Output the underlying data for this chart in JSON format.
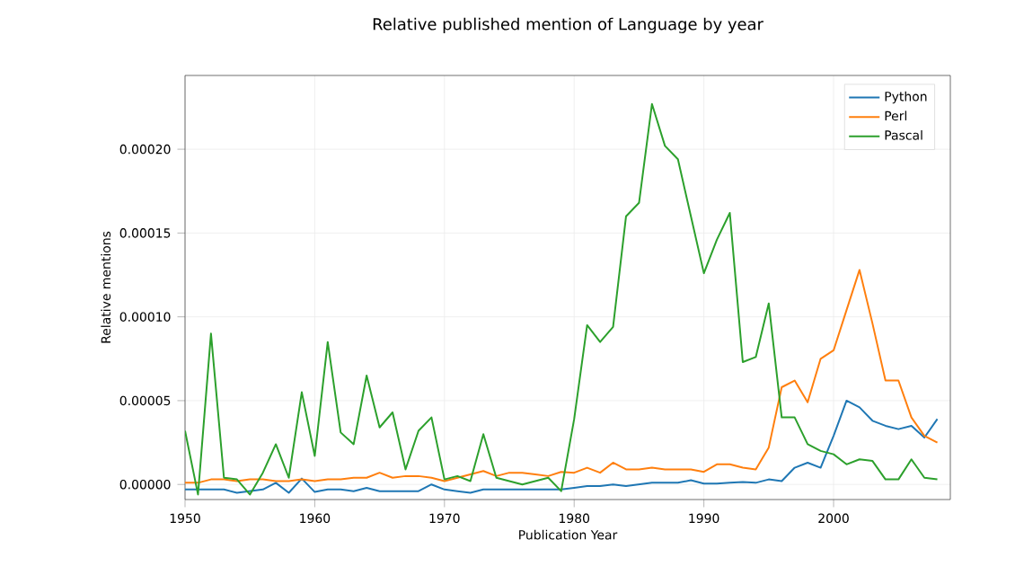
{
  "chart_data": {
    "type": "line",
    "title": "Relative published mention of Language by year",
    "xlabel": "Publication Year",
    "ylabel": "Relative mentions",
    "x": [
      1950,
      1951,
      1952,
      1953,
      1954,
      1955,
      1956,
      1957,
      1958,
      1959,
      1960,
      1961,
      1962,
      1963,
      1964,
      1965,
      1966,
      1967,
      1968,
      1969,
      1970,
      1971,
      1972,
      1973,
      1974,
      1975,
      1976,
      1977,
      1978,
      1979,
      1980,
      1981,
      1982,
      1983,
      1984,
      1985,
      1986,
      1987,
      1988,
      1989,
      1990,
      1991,
      1992,
      1993,
      1994,
      1995,
      1996,
      1997,
      1998,
      1999,
      2000,
      2001,
      2002,
      2003,
      2004,
      2005,
      2006,
      2007,
      2008
    ],
    "series": [
      {
        "name": "Python",
        "color": "#1f77b4",
        "values": [
          -3e-06,
          -3e-06,
          -3e-06,
          -3e-06,
          -5e-06,
          -4e-06,
          -3e-06,
          1e-06,
          -5e-06,
          3.5e-06,
          -4.5e-06,
          -3e-06,
          -3e-06,
          -4e-06,
          -2e-06,
          -4e-06,
          -4e-06,
          -4e-06,
          -4e-06,
          0.0,
          -3e-06,
          -4e-06,
          -5e-06,
          -3e-06,
          -3e-06,
          -3e-06,
          -3e-06,
          -3e-06,
          -3e-06,
          -3e-06,
          -2e-06,
          -1e-06,
          -1e-06,
          0.0,
          -1e-06,
          0.0,
          1e-06,
          1e-06,
          1e-06,
          2.5e-06,
          5e-07,
          5e-07,
          1e-06,
          1.5e-06,
          1e-06,
          3e-06,
          2e-06,
          1e-05,
          1.3e-05,
          1e-05,
          2.9e-05,
          5e-05,
          4.6e-05,
          3.8e-05,
          3.5e-05,
          3.3e-05,
          3.5e-05,
          2.8e-05,
          3.9e-05
        ]
      },
      {
        "name": "Perl",
        "color": "#ff7f0e",
        "values": [
          1e-06,
          1e-06,
          3e-06,
          3e-06,
          2e-06,
          3e-06,
          3e-06,
          2e-06,
          2e-06,
          3e-06,
          2e-06,
          3e-06,
          3e-06,
          4e-06,
          4e-06,
          7e-06,
          4e-06,
          5e-06,
          5e-06,
          4e-06,
          2e-06,
          4e-06,
          6e-06,
          8e-06,
          5e-06,
          7e-06,
          7e-06,
          6e-06,
          5e-06,
          7.5e-06,
          7e-06,
          1e-05,
          7e-06,
          1.3e-05,
          9e-06,
          9e-06,
          1e-05,
          9e-06,
          9e-06,
          9e-06,
          7.5e-06,
          1.2e-05,
          1.2e-05,
          1e-05,
          9e-06,
          2.2e-05,
          5.8e-05,
          6.2e-05,
          4.9e-05,
          7.5e-05,
          8e-05,
          0.000104,
          0.000128,
          9.6e-05,
          6.2e-05,
          6.2e-05,
          4e-05,
          2.9e-05,
          2.5e-05
        ]
      },
      {
        "name": "Pascal",
        "color": "#2ca02c",
        "values": [
          3.2e-05,
          -6e-06,
          9e-05,
          4e-06,
          3e-06,
          -6e-06,
          7e-06,
          2.4e-05,
          4e-06,
          5.5e-05,
          1.7e-05,
          8.5e-05,
          3.1e-05,
          2.4e-05,
          6.5e-05,
          3.4e-05,
          4.3e-05,
          9e-06,
          3.2e-05,
          4e-05,
          3e-06,
          5e-06,
          2e-06,
          3e-05,
          4e-06,
          2e-06,
          0.0,
          2e-06,
          4e-06,
          -4e-06,
          3.9e-05,
          9.5e-05,
          8.5e-05,
          9.4e-05,
          0.00016,
          0.000168,
          0.000227,
          0.000202,
          0.000194,
          0.00016,
          0.000126,
          0.000146,
          0.000162,
          7.3e-05,
          7.6e-05,
          0.000108,
          4e-05,
          4e-05,
          2.4e-05,
          2e-05,
          1.8e-05,
          1.2e-05,
          1.5e-05,
          1.4e-05,
          3e-06,
          3e-06,
          1.5e-05,
          4e-06,
          3e-06
        ]
      }
    ],
    "xlim": [
      1950,
      2009
    ],
    "ylim": [
      -9e-06,
      0.000244
    ],
    "xticks": [
      1950,
      1960,
      1970,
      1980,
      1990,
      2000
    ],
    "yticks": [
      {
        "value": 0,
        "label": "0.00000"
      },
      {
        "value": 5e-05,
        "label": "0.00005"
      },
      {
        "value": 0.0001,
        "label": "0.00010"
      },
      {
        "value": 0.00015,
        "label": "0.00015"
      },
      {
        "value": 0.0002,
        "label": "0.00020"
      }
    ],
    "grid": true,
    "legend": "top right"
  }
}
